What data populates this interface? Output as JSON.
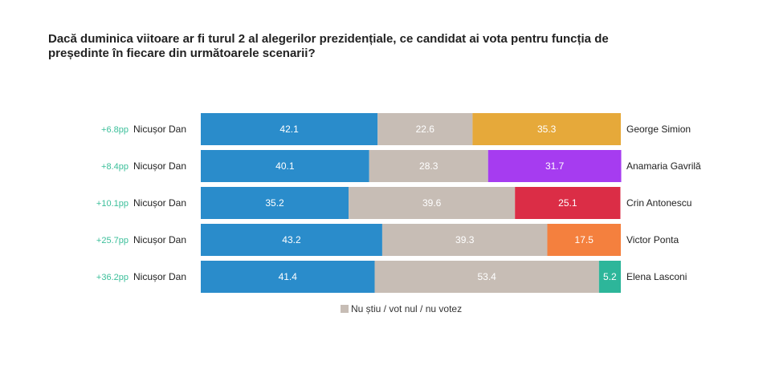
{
  "title": "Dacă duminica viitoare ar fi turul 2 al alegerilor prezidențiale, ce candidat ai vota pentru funcția de președinte în fiecare din următoarele scenarii?",
  "colors": {
    "left": "#2a8ccb",
    "undecided": "#c7bdb5",
    "diff": "#3bbf9a",
    "label": "#ffffff"
  },
  "chart_data": {
    "type": "bar",
    "orientation": "horizontal",
    "stacked": true,
    "title": "Dacă duminica viitoare ar fi turul 2 al alegerilor prezidențiale, ce candidat ai vota pentru funcția de președinte în fiecare din următoarele scenarii?",
    "xlim": [
      0,
      100
    ],
    "legend": {
      "position": "bottom",
      "entries": [
        "Nu știu / vot nul / nu votez"
      ]
    },
    "rows": [
      {
        "diff": "+6.8pp",
        "left_name": "Nicușor Dan",
        "left": 42.1,
        "undecided": 22.6,
        "right": 35.3,
        "right_name": "George Simion",
        "right_color": "#e6a93a"
      },
      {
        "diff": "+8.4pp",
        "left_name": "Nicușor Dan",
        "left": 40.1,
        "undecided": 28.3,
        "right": 31.7,
        "right_name": "Anamaria Gavrilă",
        "right_color": "#a63cf0"
      },
      {
        "diff": "+10.1pp",
        "left_name": "Nicușor Dan",
        "left": 35.2,
        "undecided": 39.6,
        "right": 25.1,
        "right_name": "Crin Antonescu",
        "right_color": "#db2d46"
      },
      {
        "diff": "+25.7pp",
        "left_name": "Nicușor Dan",
        "left": 43.2,
        "undecided": 39.3,
        "right": 17.5,
        "right_name": "Victor Ponta",
        "right_color": "#f4803e"
      },
      {
        "diff": "+36.2pp",
        "left_name": "Nicușor Dan",
        "left": 41.4,
        "undecided": 53.4,
        "right": 5.2,
        "right_name": "Elena Lasconi",
        "right_color": "#2db69a"
      }
    ]
  }
}
